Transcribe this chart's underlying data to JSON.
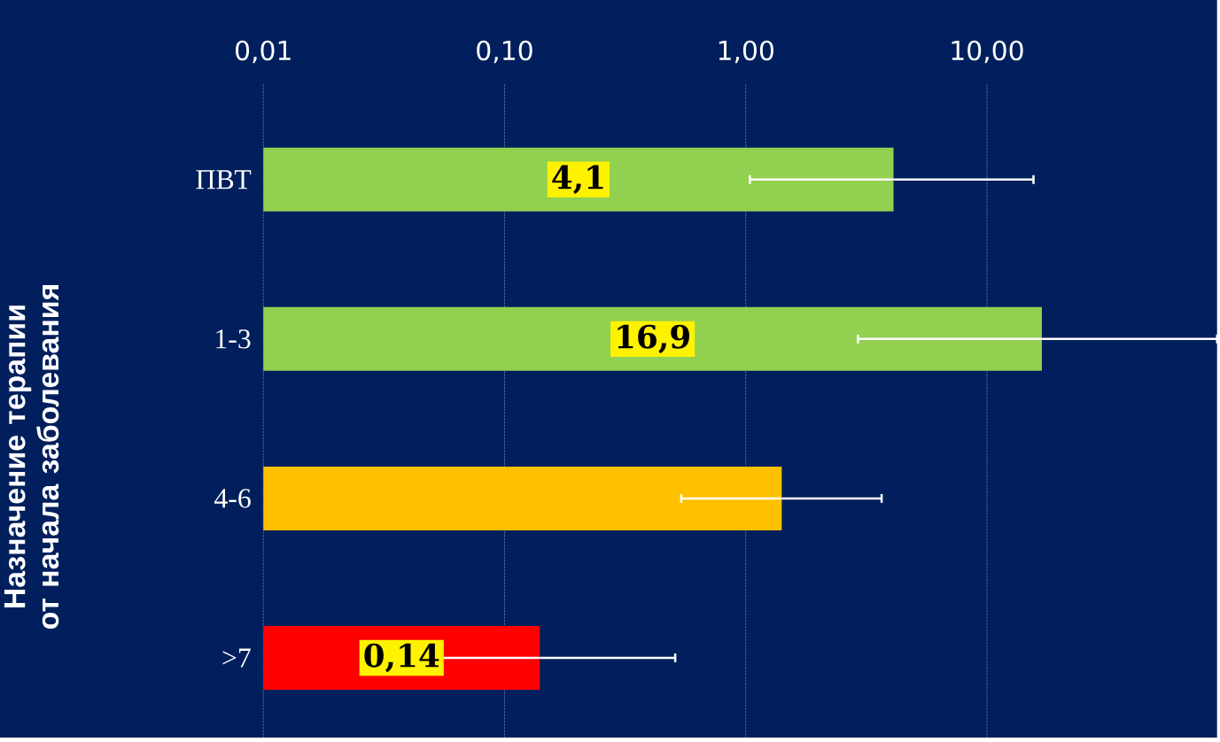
{
  "chart_data": {
    "type": "bar",
    "orientation": "horizontal",
    "log": "x",
    "ylabel": "Назначение терапии от начала заболевания",
    "categories": [
      "ПВТ",
      "1-3",
      "4-6",
      ">7"
    ],
    "values": [
      4.1,
      16.9,
      1.41,
      0.14
    ],
    "colors": [
      "#92d050",
      "#92d050",
      "#ffc000",
      "#ff0000"
    ],
    "errors": [
      [
        1.04,
        15.6
      ],
      [
        2.92,
        90
      ],
      [
        0.54,
        3.66
      ],
      [
        0.0376,
        0.51
      ]
    ],
    "value_labels": [
      "4,1",
      "16,9",
      null,
      "0,14"
    ],
    "xlim": [
      0.01,
      90
    ],
    "xticks": [
      {
        "value": 0.01,
        "label": "0,01"
      },
      {
        "value": 0.1,
        "label": "0,10"
      },
      {
        "value": 1,
        "label": "1,00"
      },
      {
        "value": 10,
        "label": "10,00"
      }
    ],
    "grid": "x"
  }
}
